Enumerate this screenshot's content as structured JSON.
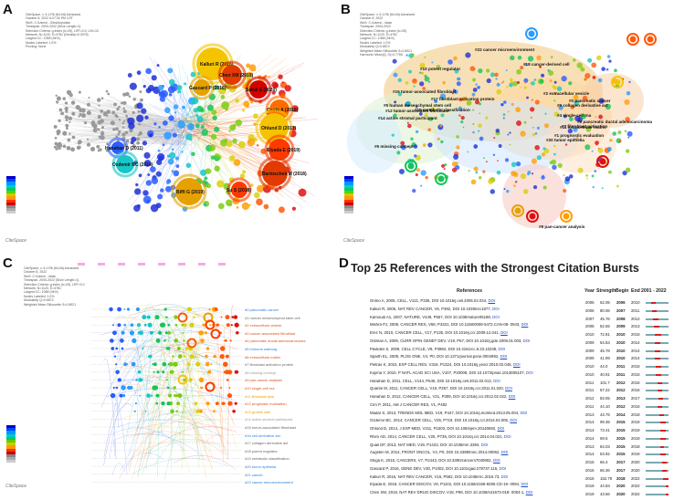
{
  "panels": {
    "a": {
      "label": "A"
    },
    "b": {
      "label": "B"
    },
    "c": {
      "label": "C"
    },
    "d": {
      "label": "D"
    }
  },
  "legend_a": [
    "CiteSpace, v. 6.1.R6 (64-bit) Advanced",
    "October 8, 2022 6:07:30 PM CST",
    "WoS: C:\\Users\\...\\Desktop\\data",
    "Timespan: 2000-2022 (Slice Length=1)",
    "Selection Criteria: g-index (k=25), LRF=3.0, L/N=10",
    "Network: N=1120, E=4781 (Density=0.0076)",
    "Largest CC: 1058 (94%)",
    "Nodes Labeled: 1.0%",
    "Pruning: None"
  ],
  "legend_b": [
    "CiteSpace, v. 6.1.R6 (64-bit) Advanced",
    "October 8, 2022",
    "WoS: C:\\Users\\...\\data",
    "Timespan: 2000-2022",
    "Selection Criteria: g-index (k=25)",
    "Network: N=1120, E=4781",
    "Largest CC: 1058 (94%)",
    "Nodes Labeled: 1.0%",
    "Modularity Q=0.6872",
    "Weighted Mean Silhouette S=0.8921",
    "Harmonic Mean(Q, S)=0.7765"
  ],
  "legend_c": [
    "CiteSpace, v. 6.1.R6 (64-bit) Advanced",
    "October 8, 2022",
    "WoS: C:\\Users\\...\\data",
    "Timespan: 2000-2022 (Slice Length=1)",
    "Selection Criteria: g-index (k=25), LRF=3.0",
    "Network: N=1120, E=4781",
    "Largest CC: 1058 (94%)",
    "Nodes Labeled: 1.0%",
    "Modularity Q=0.6872",
    "Weighted Mean Silhouette S=0.8921"
  ],
  "citespace_mark": "CiteSpace",
  "network_a_labels": [
    "Kalluri R (2016)",
    "Chen XM (2019)",
    "Gascard P (2016)",
    "Sahai E (2020)",
    "Costa A (2018)",
    "Ohlund D (2017)",
    "Elyada E (2019)",
    "Bartoschek M (2018)",
    "Hanahan D (2011)",
    "Ozdemir BC (2014)",
    "Biffi G (2019)",
    "Su S (2018)"
  ],
  "cluster_b_labels": [
    "#22 cancer microenvironment",
    "#10 potent regulator",
    "#18 cancer-derived cell",
    "#15 tumor-associated fibroblast",
    "#17 fibroblast activation protein",
    "#2 extracellular vesicle",
    "#5 human mesenchymal stem cell",
    "#0 pancreatic cancer",
    "#9 collagen derivative act",
    "#12 tumor-associated fibroblast",
    "#14 active stromal participant",
    "#19 metabolic classification",
    "#4 single-cell rna",
    "#3 pancreatic ductal adenocarcinoma",
    "#7 fibroblast activation",
    "#6 missing concept",
    "#20 tumor epithelia",
    "#1 prognostic evaluation",
    "#8 pan-cancer analysis",
    "#11 extracellular matrix"
  ],
  "cluster_c_labels": [
    {
      "text": "#0 pancreatic cancer",
      "color": "#2a7de1"
    },
    {
      "text": "#1 human mesenchymal stem cell",
      "color": "#666666"
    },
    {
      "text": "#2 extracellular vesicle",
      "color": "#d9531e"
    },
    {
      "text": "#3 cancer-associated fibroblast",
      "color": "#d9531e"
    },
    {
      "text": "#4 pancreatic ductal adenocarcinoma",
      "color": "#d9531e"
    },
    {
      "text": "#5 immune warburg",
      "color": "#2a7de1"
    },
    {
      "text": "#6 extracellular matrix",
      "color": "#d9531e"
    },
    {
      "text": "#7 fibroblast activation protein",
      "color": "#666666"
    },
    {
      "text": "#8 missing concept",
      "color": "#999999"
    },
    {
      "text": "#9 pan-cancer analysis",
      "color": "#d9531e"
    },
    {
      "text": "#10 single-cell rna",
      "color": "#d9531e"
    },
    {
      "text": "#11 fibroblast lipid",
      "color": "#e6a100"
    },
    {
      "text": "#12 prognostic evaluation",
      "color": "#d9531e"
    },
    {
      "text": "#13 growth rate",
      "color": "#e6a100"
    },
    {
      "text": "#14 active stromal participant",
      "color": "#999999"
    },
    {
      "text": "#15 tumor-associated fibroblast",
      "color": "#666666"
    },
    {
      "text": "#16 cell-derivative act",
      "color": "#2a7de1"
    },
    {
      "text": "#17 collagen derivative act",
      "color": "#666666"
    },
    {
      "text": "#18 potent regulator",
      "color": "#666666"
    },
    {
      "text": "#19 metabolic classification",
      "color": "#666666"
    },
    {
      "text": "#20 tumor epithelia",
      "color": "#2a7de1"
    },
    {
      "text": "#21 cancer",
      "color": "#2a7de1"
    },
    {
      "text": "#22 cancer microenvironment",
      "color": "#2a7de1"
    }
  ],
  "table": {
    "title": "Top 25 References with the Strongest Citation Bursts",
    "headers": {
      "references": "References",
      "year": "Year",
      "strength": "Strength",
      "begin": "Begin",
      "end": "End",
      "range": "2001 - 2022"
    },
    "timeline": {
      "start": 2001,
      "end": 2022
    },
    "rows": [
      {
        "ref": "Orimo A, 2005, CELL, V121, P335,",
        "doi": "DOI 10.1016/j.cell.2005.02.034,",
        "link": "DOI",
        "year": 2005,
        "strength": "62.05",
        "begin": 2006,
        "end": 2010
      },
      {
        "ref": "Kalluri R, 2006, NAT REV CANCER, V6, P392, DOI 10.1038/nrc1877,",
        "doi": "",
        "link": "DOI",
        "year": 2006,
        "strength": "80.06",
        "begin": 2007,
        "end": 2011
      },
      {
        "ref": "Kamoudi A1, 2007, NATURE, V449, P557, DOI 10.1038/nature06188,",
        "doi": "",
        "link": "DOI",
        "year": 2007,
        "strength": "45.76",
        "begin": 2008,
        "end": 2012
      },
      {
        "ref": "Mishra PJ, 2008, CANCER RES, V68, P4331, DOI 10.1158/0008-5472.CAN-08-",
        "doi": "0943,",
        "link": "DOI",
        "year": 2008,
        "strength": "52.65",
        "begin": 2009,
        "end": 2013
      },
      {
        "ref": "Erez N, 2010, CANCER CELL, V17, P135, DOI 10.1016/j.ccr.2009.12.041,",
        "doi": "",
        "link": "DOI",
        "year": 2010,
        "strength": "72.81",
        "begin": 2010,
        "end": 2015
      },
      {
        "ref": "Ostman A, 2009, CURR OPIN GENET DEV, V19, P67, DOI",
        "doi": "10.1016/j.gde.2009.01.003,",
        "link": "DOI",
        "year": 2009,
        "strength": "54.53",
        "begin": 2010,
        "end": 2014
      },
      {
        "ref": "Pavlides S, 2009, CELL CYCLE, V8, P3984, DOI 10.4161/cc.8.23.10238,",
        "doi": "",
        "link": "DOI",
        "year": 2009,
        "strength": "45.78",
        "begin": 2010,
        "end": 2014
      },
      {
        "ref": "Sparth EL, 2009, PLOS ONE, V4, P0, DOI 10.1371/journal.pone.0004992,",
        "doi": "",
        "link": "DOI",
        "year": 2009,
        "strength": "41.99",
        "begin": 2010,
        "end": 2014
      },
      {
        "ref": "Pietras K, 2010, EXP CELL RES, V316, P1324, DOI 10.1016/j.yexcr.2010.02.045,",
        "doi": "",
        "link": "DOI",
        "year": 2010,
        "strength": "44.0",
        "begin": 2011,
        "end": 2015
      },
      {
        "ref": "Kojima Y, 2010, P NATL ACAD SCI USA, V107, P20009, DOI",
        "doi": "10.1073/pnas.1013805107,",
        "link": "DOI",
        "year": 2010,
        "strength": "40.91",
        "begin": 2011,
        "end": 2015
      },
      {
        "ref": "Hanahan D, 2011, CELL, V144, P646, DOI 10.1016/j.cell.2011.02.013,",
        "doi": "",
        "link": "DOI",
        "year": 2011,
        "strength": "101.7",
        "begin": 2012,
        "end": 2016
      },
      {
        "ref": "Quante M, 2011, CANCER CELL, V19, P257, DOI 10.1016/j.ccr.2011.01.020,",
        "doi": "",
        "link": "DOI",
        "year": 2011,
        "strength": "57.22",
        "begin": 2012,
        "end": 2016
      },
      {
        "ref": "Hanahan D, 2012, CANCER CELL, V21, P309, DOI 10.1016/j.ccr.2012.02.022,",
        "doi": "",
        "link": "DOI",
        "year": 2012,
        "strength": "83.05",
        "begin": 2013,
        "end": 2017
      },
      {
        "ref": "Cirri P, 2011, AM J CANCER RES, V1, P482",
        "doi": "",
        "link": "",
        "year": 2011,
        "strength": "44.10",
        "begin": 2012,
        "end": 2016
      },
      {
        "ref": "Madar S, 2013, TRENDS MOL MED, V19, P447, DOI",
        "doi": "10.1016/j.molmed.2013.05.004,",
        "link": "DOI",
        "year": 2013,
        "strength": "43.75",
        "begin": 2014,
        "end": 2018
      },
      {
        "ref": "Ozdemir BC, 2014, CANCER CELL, V25, P719, DOI 10.1016/j.ccr.2014.04.005,",
        "doi": "",
        "link": "DOI",
        "year": 2014,
        "strength": "99.35",
        "begin": 2015,
        "end": 2019
      },
      {
        "ref": "Ohlund D, 2014, J EXP MED, V211, P1503, DOI 10.1084/jem.20140692,",
        "doi": "",
        "link": "DOI",
        "year": 2014,
        "strength": "73.41",
        "begin": 2015,
        "end": 2019
      },
      {
        "ref": "Rhim AD, 2014, CANCER CELL, V25, P735, DOI 10.1016/j.ccr.2014.04.021,",
        "doi": "",
        "link": "DOI",
        "year": 2014,
        "strength": "69.6",
        "begin": 2015,
        "end": 2019
      },
      {
        "ref": "Quail DF, 2013, NAT MED, V19, P1423, DOI 10.1038/nm.3394,",
        "doi": "",
        "link": "DOI",
        "year": 2013,
        "strength": "84.03",
        "begin": 2015,
        "end": 2018
      },
      {
        "ref": "Augsten M, 2014, FRONT ONCOL, V4, P0, DOI 10.3389/fonc.2014.00062,",
        "doi": "",
        "link": "DOI",
        "year": 2014,
        "strength": "53.92",
        "begin": 2015,
        "end": 2019
      },
      {
        "ref": "Shiga K, 2015, CANCERS, V7, P2443, DOI 10.3390/cancers7040902,",
        "doi": "",
        "link": "DOI",
        "year": 2015,
        "strength": "66.4",
        "begin": 2017,
        "end": 2020
      },
      {
        "ref": "Gascard P, 2016, GENE DEV, V30, P1002, DOI 10.1101/gad.279737.116,",
        "doi": "",
        "link": "DOI",
        "year": 2016,
        "strength": "66.36",
        "begin": 2017,
        "end": 2020
      },
      {
        "ref": "Kalluri R, 2016, NAT REV CANCER, V16, P582, DOI 10.1038/nrc.2016.73,",
        "doi": "",
        "link": "DOI",
        "year": 2016,
        "strength": "152.79",
        "begin": 2018,
        "end": 2022
      },
      {
        "ref": "Elyada E, 2019, CANCER DISCOV, V9, P1102, DOI 10.1158/2159-8290.CD-19-",
        "doi": "0094,",
        "link": "DOI",
        "year": 2019,
        "strength": "44.83",
        "begin": 2020,
        "end": 2022
      },
      {
        "ref": "Chen XM, 2019, NAT REV DRUG DISCOV, V18, P99, DOI 10.1038/s41573-018-",
        "doi": "0004-1,",
        "link": "DOI",
        "year": 2019,
        "strength": "43.66",
        "begin": 2020,
        "end": 2022
      }
    ]
  }
}
